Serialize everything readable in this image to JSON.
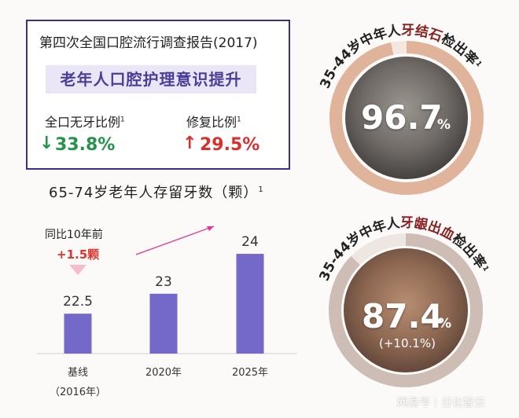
{
  "survey": {
    "title": "第四次全国口腔流行调查报告(2017)",
    "theme": "老年人口腔护理意识提升",
    "stats": [
      {
        "label": "全口无牙比例",
        "footnote": "1",
        "value": "33.8%",
        "direction": "down",
        "color": "#23944a"
      },
      {
        "label": "修复比例",
        "footnote": "1",
        "value": "29.5%",
        "direction": "up",
        "color": "#d8302c"
      }
    ]
  },
  "chart_data": {
    "type": "bar",
    "title": "65-74岁老年人存留牙数（颗）",
    "title_footnote": "1",
    "categories": [
      "基线",
      "2020年",
      "2025年"
    ],
    "category_sublabels": [
      "（2016年）",
      "",
      ""
    ],
    "values": [
      22.5,
      23,
      24
    ],
    "value_labels": [
      "22.5",
      "23",
      "24"
    ],
    "bar_color": "#7468c8",
    "annotation": {
      "label": "同比10年前",
      "value": "+1.5颗"
    },
    "ylim": [
      21.5,
      24.1
    ]
  },
  "rings": [
    {
      "caption_prefix": "35-44岁中年人",
      "caption_highlight": "牙结石",
      "caption_suffix": "检出率",
      "footnote": "1",
      "value": "96.7",
      "unit": "%",
      "change": "",
      "ring_color": "#e0b39b",
      "track_color": "#f3e7e0",
      "percent": 96.7
    },
    {
      "caption_prefix": "35-44岁中年人",
      "caption_highlight": "牙龈出血",
      "caption_suffix": "检出率",
      "footnote": "1",
      "value": "87.4",
      "unit": "%",
      "change": "(+10.1%)",
      "ring_color": "#cdbdb4",
      "track_color": "#eee6e1",
      "percent": 87.4
    }
  ],
  "watermark": "网易号｜日化智云"
}
